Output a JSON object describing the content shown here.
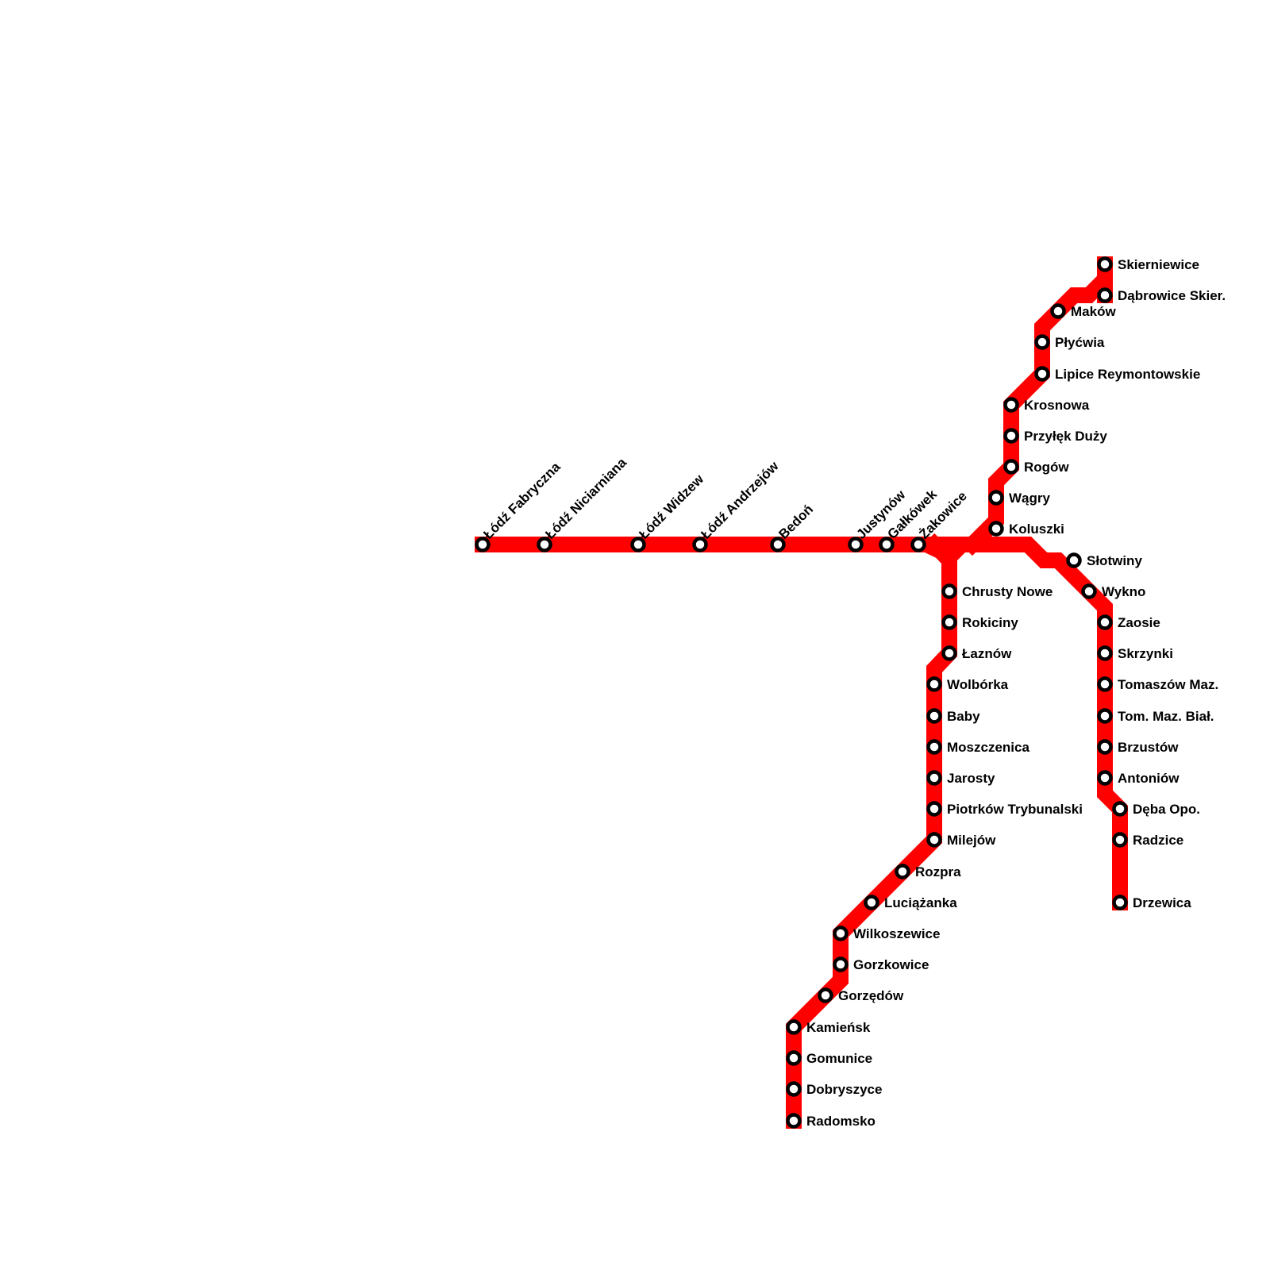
{
  "line_color": "#ff0000",
  "station_stroke": "#000000",
  "station_fill": "#ffffff",
  "stations": [
    {
      "id": "fab",
      "name": "Łódź Fabryczna"
    },
    {
      "id": "nic",
      "name": "Łódź Niciarniana"
    },
    {
      "id": "wid",
      "name": "Łódź Widzew"
    },
    {
      "id": "and",
      "name": "Łódź Andrzejów"
    },
    {
      "id": "bed",
      "name": "Bedoń"
    },
    {
      "id": "jus",
      "name": "Justynów"
    },
    {
      "id": "gal",
      "name": "Gałkówek"
    },
    {
      "id": "zak",
      "name": "Żakowice"
    },
    {
      "id": "kol",
      "name": "Koluszki"
    },
    {
      "id": "wag",
      "name": "Wągry"
    },
    {
      "id": "rog",
      "name": "Rogów"
    },
    {
      "id": "prz",
      "name": "Przyłęk Duży"
    },
    {
      "id": "kro",
      "name": "Krosnowa"
    },
    {
      "id": "lip",
      "name": "Lipice Reymontowskie"
    },
    {
      "id": "ply",
      "name": "Płyćwia"
    },
    {
      "id": "mak",
      "name": "Maków"
    },
    {
      "id": "dab",
      "name": "Dąbrowice Skier."
    },
    {
      "id": "ski",
      "name": "Skierniewice"
    },
    {
      "id": "slo",
      "name": "Słotwiny"
    },
    {
      "id": "wyk",
      "name": "Wykno"
    },
    {
      "id": "zao",
      "name": "Zaosie"
    },
    {
      "id": "skr",
      "name": "Skrzynki"
    },
    {
      "id": "tom",
      "name": "Tomaszów Maz."
    },
    {
      "id": "tmb",
      "name": "Tom. Maz. Biał."
    },
    {
      "id": "brz",
      "name": "Brzustów"
    },
    {
      "id": "ant",
      "name": "Antoniów"
    },
    {
      "id": "deb",
      "name": "Dęba Opo."
    },
    {
      "id": "rad",
      "name": "Radzice"
    },
    {
      "id": "drz",
      "name": "Drzewica"
    },
    {
      "id": "chr",
      "name": "Chrusty Nowe"
    },
    {
      "id": "rok",
      "name": "Rokiciny"
    },
    {
      "id": "laz",
      "name": "Łaznów"
    },
    {
      "id": "wol",
      "name": "Wolbórka"
    },
    {
      "id": "bab",
      "name": "Baby"
    },
    {
      "id": "mos",
      "name": "Moszczenica"
    },
    {
      "id": "jar",
      "name": "Jarosty"
    },
    {
      "id": "pio",
      "name": "Piotrków Trybunalski"
    },
    {
      "id": "mil",
      "name": "Milejów"
    },
    {
      "id": "roz",
      "name": "Rozpra"
    },
    {
      "id": "luc",
      "name": "Luciążanka"
    },
    {
      "id": "wil",
      "name": "Wilkoszewice"
    },
    {
      "id": "gor",
      "name": "Gorzkowice"
    },
    {
      "id": "grz",
      "name": "Gorzędów"
    },
    {
      "id": "kam",
      "name": "Kamieńsk"
    },
    {
      "id": "gom",
      "name": "Gomunice"
    },
    {
      "id": "dob",
      "name": "Dobryszyce"
    },
    {
      "id": "rdm",
      "name": "Radomsko"
    }
  ]
}
